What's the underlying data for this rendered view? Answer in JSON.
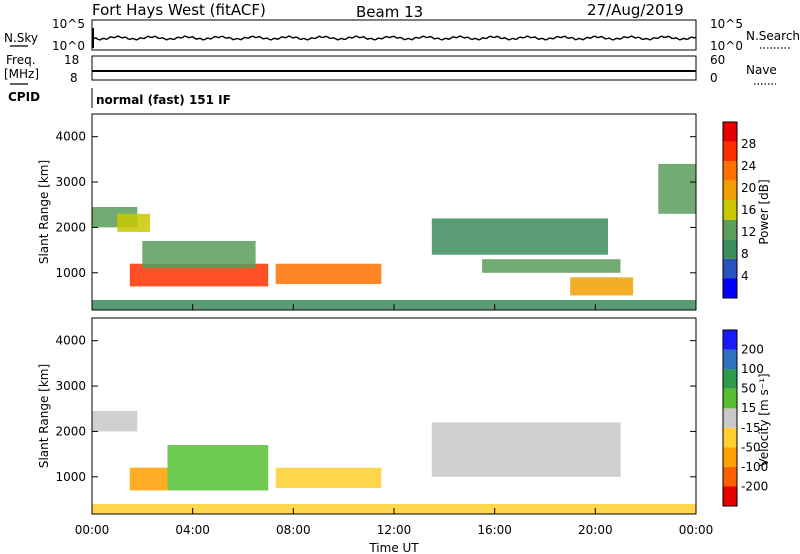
{
  "header": {
    "station": "Fort Hays West (fitACF)",
    "beam": "Beam 13",
    "date": "27/Aug/2019"
  },
  "panels": {
    "nsky_label": "N.Sky",
    "nsearch_label": "N.Search",
    "freq_label_1": "Freq.",
    "freq_label_2": "[MHz]",
    "nave_label": "Nave",
    "cpid_label": "CPID",
    "cpid_value": "normal (fast) 151 IF",
    "nsky_ticks": [
      "10^5",
      "10^0"
    ],
    "nsearch_ticks": [
      "10^5",
      "10^0"
    ],
    "freq_ticks": [
      "18",
      "8"
    ],
    "nave_ticks": [
      "60",
      "0"
    ]
  },
  "colors": {
    "power": [
      "#0000ff",
      "#2a52be",
      "#3d8c5c",
      "#5a9e5a",
      "#c8c800",
      "#f0a000",
      "#ff7000",
      "#ff3000",
      "#e60000"
    ],
    "velocity": [
      "#1a1aff",
      "#3070c0",
      "#2f9a4a",
      "#54c030",
      "#c8c8c8",
      "#ffd030",
      "#ffa000",
      "#ff6000",
      "#e60000"
    ]
  },
  "chart_data": [
    {
      "type": "heatmap",
      "name": "power",
      "ylabel": "Slant Range [km]",
      "xlabel": "",
      "xlim": [
        "00:00",
        "24:00"
      ],
      "ylim": [
        180,
        4500
      ],
      "x_ticks": [
        "00:00",
        "04:00",
        "08:00",
        "12:00",
        "16:00",
        "20:00",
        "00:00"
      ],
      "y_ticks": [
        "1000",
        "2000",
        "3000",
        "4000"
      ],
      "colorbar_label": "Power [dB]",
      "colorbar_ticks": [
        "4",
        "8",
        "12",
        "16",
        "20",
        "24",
        "28"
      ],
      "regions": [
        {
          "t0": 0.0,
          "t1": 1.8,
          "r0": 2000,
          "r1": 2450,
          "value": 12
        },
        {
          "t0": 1.0,
          "t1": 2.3,
          "r0": 1900,
          "r1": 2300,
          "value": 16
        },
        {
          "t0": 1.5,
          "t1": 7.0,
          "r0": 700,
          "r1": 1200,
          "value": 26
        },
        {
          "t0": 2.0,
          "t1": 6.5,
          "r0": 1100,
          "r1": 1700,
          "value": 14
        },
        {
          "t0": 7.3,
          "t1": 11.5,
          "r0": 750,
          "r1": 1200,
          "value": 24
        },
        {
          "t0": 13.5,
          "t1": 20.5,
          "r0": 1400,
          "r1": 2200,
          "value": 10
        },
        {
          "t0": 15.5,
          "t1": 21.0,
          "r0": 1000,
          "r1": 1300,
          "value": 12
        },
        {
          "t0": 19.0,
          "t1": 21.5,
          "r0": 500,
          "r1": 900,
          "value": 18
        },
        {
          "t0": 22.5,
          "t1": 24.0,
          "r0": 2300,
          "r1": 3400,
          "value": 12
        },
        {
          "t0": 0.0,
          "t1": 24.0,
          "r0": 180,
          "r1": 400,
          "value": 8
        }
      ]
    },
    {
      "type": "heatmap",
      "name": "velocity",
      "ylabel": "Slant Range [km]",
      "xlabel": "Time UT",
      "xlim": [
        "00:00",
        "24:00"
      ],
      "ylim": [
        180,
        4500
      ],
      "x_ticks": [
        "00:00",
        "04:00",
        "08:00",
        "12:00",
        "16:00",
        "20:00",
        "00:00"
      ],
      "y_ticks": [
        "1000",
        "2000",
        "3000",
        "4000"
      ],
      "colorbar_label": "Velocity [m s⁻¹]",
      "colorbar_ticks": [
        "200",
        "100",
        "50",
        "15",
        "-15",
        "-50",
        "-100",
        "-200"
      ],
      "regions": [
        {
          "t0": 0.0,
          "t1": 1.8,
          "r0": 2000,
          "r1": 2450,
          "value": 0
        },
        {
          "t0": 1.5,
          "t1": 3.0,
          "r0": 700,
          "r1": 1200,
          "value": -100
        },
        {
          "t0": 3.0,
          "t1": 7.0,
          "r0": 700,
          "r1": 1700,
          "value": 60
        },
        {
          "t0": 7.3,
          "t1": 11.5,
          "r0": 750,
          "r1": 1200,
          "value": -40
        },
        {
          "t0": 13.5,
          "t1": 21.0,
          "r0": 1000,
          "r1": 2200,
          "value": 0
        },
        {
          "t0": 0.0,
          "t1": 24.0,
          "r0": 180,
          "r1": 400,
          "value": -40
        }
      ]
    }
  ]
}
